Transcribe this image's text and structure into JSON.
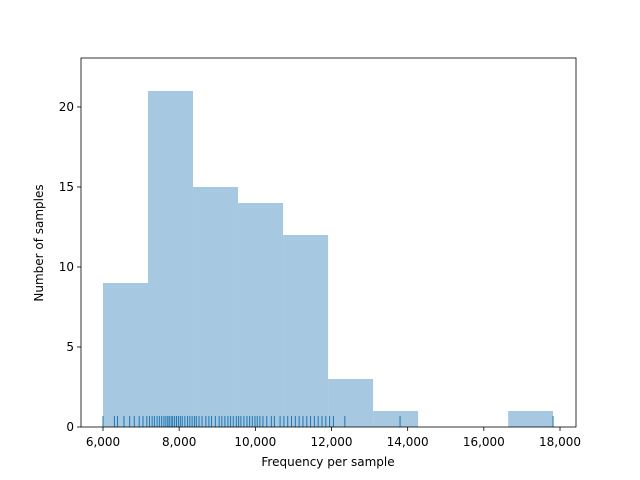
{
  "chart_data": {
    "type": "histogram",
    "x_label": "Frequency per sample",
    "y_label": "Number of samples",
    "bins": [
      6000,
      7182,
      8364,
      9546,
      10728,
      11910,
      13092,
      14274,
      15456,
      16638,
      17817
    ],
    "counts": [
      9,
      21,
      15,
      14,
      12,
      3,
      1,
      0,
      0,
      1
    ],
    "color": "#a6c8e0",
    "rug": [
      6000,
      6300,
      6380,
      6550,
      6700,
      6820,
      6950,
      7050,
      7150,
      7220,
      7290,
      7350,
      7420,
      7480,
      7540,
      7600,
      7650,
      7700,
      7740,
      7790,
      7830,
      7880,
      7930,
      7980,
      8030,
      8080,
      8150,
      8220,
      8280,
      8340,
      8400,
      8450,
      8520,
      8600,
      8700,
      8780,
      8850,
      8950,
      9050,
      9120,
      9200,
      9280,
      9350,
      9420,
      9500,
      9560,
      9620,
      9700,
      9780,
      9850,
      9920,
      9990,
      10050,
      10120,
      10200,
      10300,
      10420,
      10500,
      10650,
      10750,
      10850,
      10950,
      11050,
      11150,
      11250,
      11350,
      11450,
      11550,
      11650,
      11750,
      11850,
      11950,
      12050,
      12350,
      13800,
      17817
    ],
    "rug_color": "#1f77b4",
    "xlim": [
      5422,
      18420
    ],
    "ylim": [
      0,
      23.06
    ],
    "xticks": [
      {
        "value": 6000,
        "label": "6,000"
      },
      {
        "value": 8000,
        "label": "8,000"
      },
      {
        "value": 10000,
        "label": "10,000"
      },
      {
        "value": 12000,
        "label": "12,000"
      },
      {
        "value": 14000,
        "label": "14,000"
      },
      {
        "value": 16000,
        "label": "16,000"
      },
      {
        "value": 18000,
        "label": "18,000"
      }
    ],
    "yticks": [
      0,
      5,
      10,
      15,
      20
    ]
  }
}
